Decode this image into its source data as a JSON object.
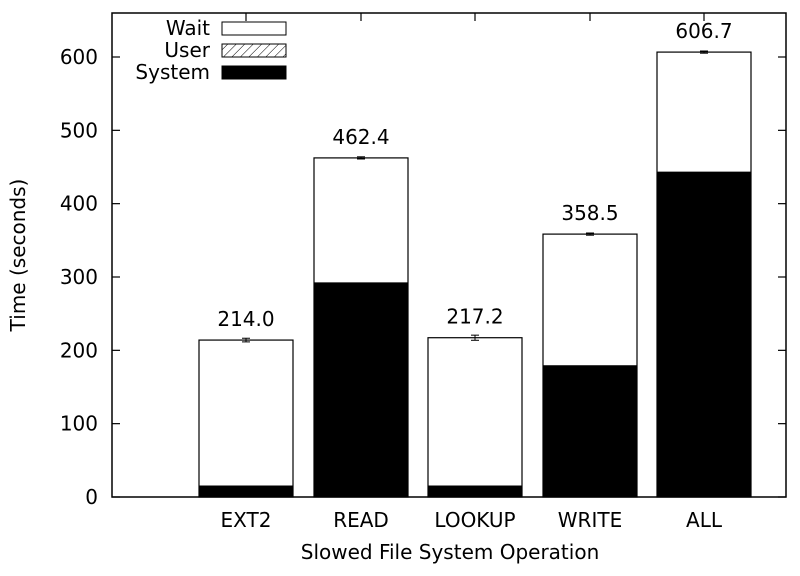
{
  "chart_data": {
    "type": "bar",
    "stacked": true,
    "title": "",
    "xlabel": "Slowed File System Operation",
    "ylabel": "Time (seconds)",
    "ylim": [
      0,
      660
    ],
    "yticks": [
      0,
      100,
      200,
      300,
      400,
      500,
      600
    ],
    "grid": false,
    "legend_position": "top-left",
    "categories": [
      "EXT2",
      "READ",
      "LOOKUP",
      "WRITE",
      "ALL"
    ],
    "series": [
      {
        "name": "System",
        "values": [
          15,
          292,
          15,
          179,
          443
        ],
        "pattern": "solid",
        "color": "#000000"
      },
      {
        "name": "User",
        "values": [
          0,
          0,
          0,
          0,
          0
        ],
        "pattern": "hatched",
        "color": "#000000"
      },
      {
        "name": "Wait",
        "values": [
          199.0,
          170.4,
          202.2,
          179.5,
          163.7
        ],
        "pattern": "empty",
        "color": "#ffffff"
      }
    ],
    "totals": [
      214.0,
      462.4,
      217.2,
      358.5,
      606.7
    ],
    "total_labels": [
      "214.0",
      "462.4",
      "217.2",
      "358.5",
      "606.7"
    ],
    "error": [
      2.5,
      1.5,
      3.5,
      1.5,
      1.5
    ]
  }
}
